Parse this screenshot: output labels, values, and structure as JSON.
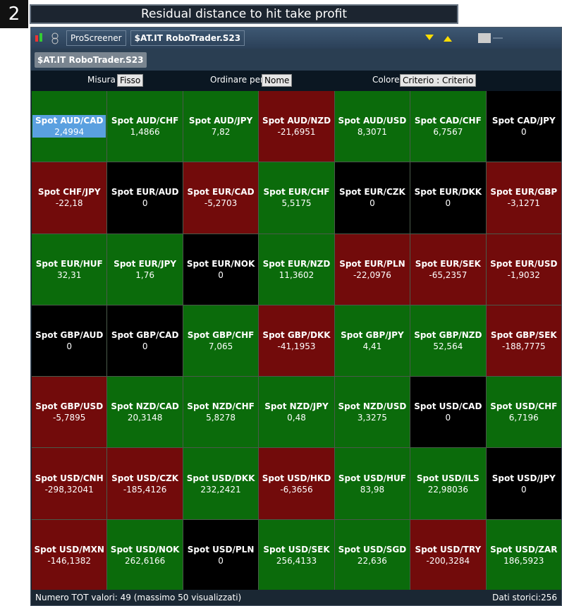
{
  "header": {
    "badge": "2",
    "title": "Residual distance to hit take profit"
  },
  "toolbar": {
    "app": "ProScreener",
    "screener": "$AT.IT RoboTrader.S23"
  },
  "tab": "$AT.IT RoboTrader.S23",
  "options": {
    "measure_label": "Misura",
    "measure": "Fisso",
    "sort_label": "Ordinare per",
    "sort": "Nome",
    "color_label": "Colore",
    "color": "Criterio : Criterio"
  },
  "tiles": [
    {
      "name": "Spot AUD/CAD",
      "value": "2,4994",
      "color": "#0b6b0b",
      "selected": true
    },
    {
      "name": "Spot AUD/CHF",
      "value": "1,4866",
      "color": "#0b6b0b"
    },
    {
      "name": "Spot AUD/JPY",
      "value": "7,82",
      "color": "#0b6b0b"
    },
    {
      "name": "Spot AUD/NZD",
      "value": "-21,6951",
      "color": "#720b0b"
    },
    {
      "name": "Spot AUD/USD",
      "value": "8,3071",
      "color": "#0b6b0b"
    },
    {
      "name": "Spot CAD/CHF",
      "value": "6,7567",
      "color": "#0b6b0b"
    },
    {
      "name": "Spot CAD/JPY",
      "value": "0",
      "color": "#000000"
    },
    {
      "name": "Spot CHF/JPY",
      "value": "-22,18",
      "color": "#720b0b"
    },
    {
      "name": "Spot EUR/AUD",
      "value": "0",
      "color": "#000000"
    },
    {
      "name": "Spot EUR/CAD",
      "value": "-5,2703",
      "color": "#720b0b"
    },
    {
      "name": "Spot EUR/CHF",
      "value": "5,5175",
      "color": "#0b6b0b"
    },
    {
      "name": "Spot EUR/CZK",
      "value": "0",
      "color": "#000000"
    },
    {
      "name": "Spot EUR/DKK",
      "value": "0",
      "color": "#000000"
    },
    {
      "name": "Spot EUR/GBP",
      "value": "-3,1271",
      "color": "#720b0b"
    },
    {
      "name": "Spot EUR/HUF",
      "value": "32,31",
      "color": "#0b6b0b"
    },
    {
      "name": "Spot EUR/JPY",
      "value": "1,76",
      "color": "#0b6b0b"
    },
    {
      "name": "Spot EUR/NOK",
      "value": "0",
      "color": "#000000"
    },
    {
      "name": "Spot EUR/NZD",
      "value": "11,3602",
      "color": "#0b6b0b"
    },
    {
      "name": "Spot EUR/PLN",
      "value": "-22,0976",
      "color": "#720b0b"
    },
    {
      "name": "Spot EUR/SEK",
      "value": "-65,2357",
      "color": "#720b0b"
    },
    {
      "name": "Spot EUR/USD",
      "value": "-1,9032",
      "color": "#720b0b"
    },
    {
      "name": "Spot GBP/AUD",
      "value": "0",
      "color": "#000000"
    },
    {
      "name": "Spot GBP/CAD",
      "value": "0",
      "color": "#000000"
    },
    {
      "name": "Spot GBP/CHF",
      "value": "7,065",
      "color": "#0b6b0b"
    },
    {
      "name": "Spot GBP/DKK",
      "value": "-41,1953",
      "color": "#720b0b"
    },
    {
      "name": "Spot GBP/JPY",
      "value": "4,41",
      "color": "#0b6b0b"
    },
    {
      "name": "Spot GBP/NZD",
      "value": "52,564",
      "color": "#0b6b0b"
    },
    {
      "name": "Spot GBP/SEK",
      "value": "-188,7775",
      "color": "#720b0b"
    },
    {
      "name": "Spot GBP/USD",
      "value": "-5,7895",
      "color": "#720b0b"
    },
    {
      "name": "Spot NZD/CAD",
      "value": "20,3148",
      "color": "#0b6b0b"
    },
    {
      "name": "Spot NZD/CHF",
      "value": "5,8278",
      "color": "#0b6b0b"
    },
    {
      "name": "Spot NZD/JPY",
      "value": "0,48",
      "color": "#0b6b0b"
    },
    {
      "name": "Spot NZD/USD",
      "value": "3,3275",
      "color": "#0b6b0b"
    },
    {
      "name": "Spot USD/CAD",
      "value": "0",
      "color": "#000000"
    },
    {
      "name": "Spot USD/CHF",
      "value": "6,7196",
      "color": "#0b6b0b"
    },
    {
      "name": "Spot USD/CNH",
      "value": "-298,32041",
      "color": "#720b0b"
    },
    {
      "name": "Spot USD/CZK",
      "value": "-185,4126",
      "color": "#720b0b"
    },
    {
      "name": "Spot USD/DKK",
      "value": "232,2421",
      "color": "#0b6b0b"
    },
    {
      "name": "Spot USD/HKD",
      "value": "-6,3656",
      "color": "#720b0b"
    },
    {
      "name": "Spot USD/HUF",
      "value": "83,98",
      "color": "#0b6b0b"
    },
    {
      "name": "Spot USD/ILS",
      "value": "22,98036",
      "color": "#0b6b0b"
    },
    {
      "name": "Spot USD/JPY",
      "value": "0",
      "color": "#000000"
    },
    {
      "name": "Spot USD/MXN",
      "value": "-146,1382",
      "color": "#720b0b"
    },
    {
      "name": "Spot USD/NOK",
      "value": "262,6166",
      "color": "#0b6b0b"
    },
    {
      "name": "Spot USD/PLN",
      "value": "0",
      "color": "#000000"
    },
    {
      "name": "Spot USD/SEK",
      "value": "256,4133",
      "color": "#0b6b0b"
    },
    {
      "name": "Spot USD/SGD",
      "value": "22,636",
      "color": "#0b6b0b"
    },
    {
      "name": "Spot USD/TRY",
      "value": "-200,3284",
      "color": "#720b0b"
    },
    {
      "name": "Spot USD/ZAR",
      "value": "186,5923",
      "color": "#0b6b0b"
    }
  ],
  "status": {
    "count": "Numero TOT valori: 49 (massimo 50 visualizzati)",
    "history": "Dati storici:256"
  }
}
